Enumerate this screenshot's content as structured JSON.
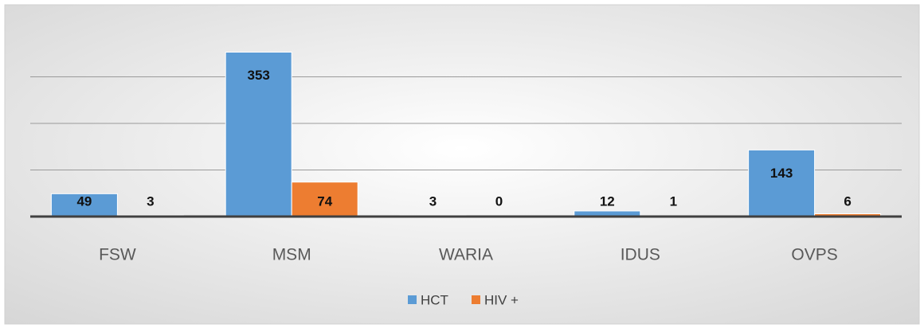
{
  "chart_data": {
    "type": "bar",
    "categories": [
      "FSW",
      "MSM",
      "WARIA",
      "IDUS",
      "OVPS"
    ],
    "series": [
      {
        "name": "HCT",
        "color": "#5b9bd5",
        "values": [
          49,
          353,
          3,
          12,
          143
        ]
      },
      {
        "name": "HIV +",
        "color": "#ed7d31",
        "values": [
          3,
          74,
          0,
          1,
          6
        ]
      }
    ],
    "ylim": [
      0,
      400
    ],
    "yticks": [
      0,
      100,
      200,
      300
    ],
    "grid": true,
    "legend": "bottom"
  }
}
